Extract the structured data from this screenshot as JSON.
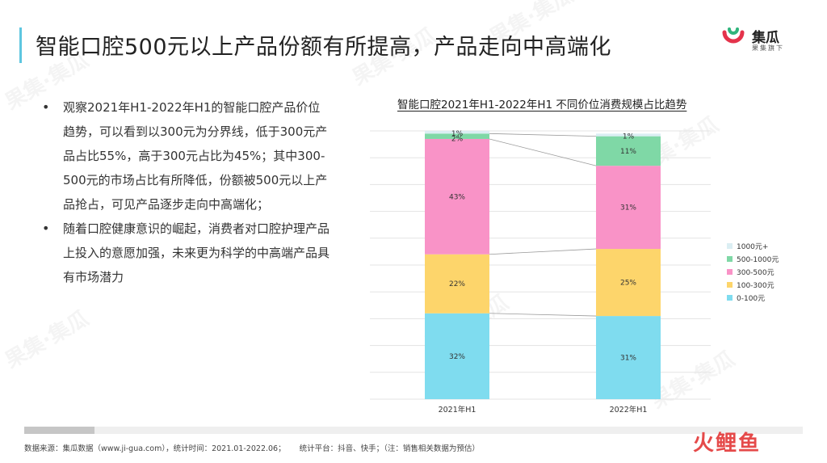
{
  "header": {
    "title": "智能口腔500元以上产品份额有所提高，产品走向中高端化"
  },
  "logo": {
    "name": "集瓜",
    "sub": "果集旗下",
    "accent_color": "#e4334b",
    "second_color": "#2fb57c"
  },
  "watermark_text": "果集·集瓜",
  "bullets": [
    "观察2021年H1-2022年H1的智能口腔产品价位趋势，可以看到以300元为分界线，低于300元产品占比55%，高于300元占比为45%；其中300-500元的市场占比有所降低，份额被500元以上产品抢占，可见产品逐步走向中高端化；",
    "随着口腔健康意识的崛起，消费者对口腔护理产品上投入的意愿加强，未来更为科学的中高端产品具有市场潜力"
  ],
  "chart_data": {
    "type": "bar",
    "stacked": true,
    "percent": true,
    "title": "智能口腔2021年H1-2022年H1 不同价位消费规模占比趋势",
    "categories": [
      "2021年H1",
      "2022年H1"
    ],
    "series": [
      {
        "name": "0-100元",
        "values": [
          32,
          31
        ],
        "labels": [
          "32%",
          "31%"
        ],
        "color": "#7fdcef"
      },
      {
        "name": "100-300元",
        "values": [
          22,
          25
        ],
        "labels": [
          "22%",
          "25%"
        ],
        "color": "#fdd56b"
      },
      {
        "name": "300-500元",
        "values": [
          43,
          31
        ],
        "labels": [
          "43%",
          "31%"
        ],
        "color": "#f993c7"
      },
      {
        "name": "500-1000元",
        "values": [
          2,
          11
        ],
        "labels": [
          "2%",
          "11%"
        ],
        "color": "#7fd8a6"
      },
      {
        "name": "1000元+",
        "values": [
          1,
          1
        ],
        "labels": [
          "1%",
          "1%"
        ],
        "color": "#dbeef3"
      }
    ],
    "ylim": [
      0,
      100
    ],
    "grid": true,
    "legend_position": "right",
    "connector_lines": true
  },
  "progress": {
    "value": 0.09
  },
  "footer": {
    "source": "数据来源：集瓜数据（www.ji-gua.com），统计时间：2021.01-2022.06；",
    "platform": "统计平台：抖音、快手；（注：销售相关数据为预估）"
  },
  "brand_badge": "火鲤鱼"
}
